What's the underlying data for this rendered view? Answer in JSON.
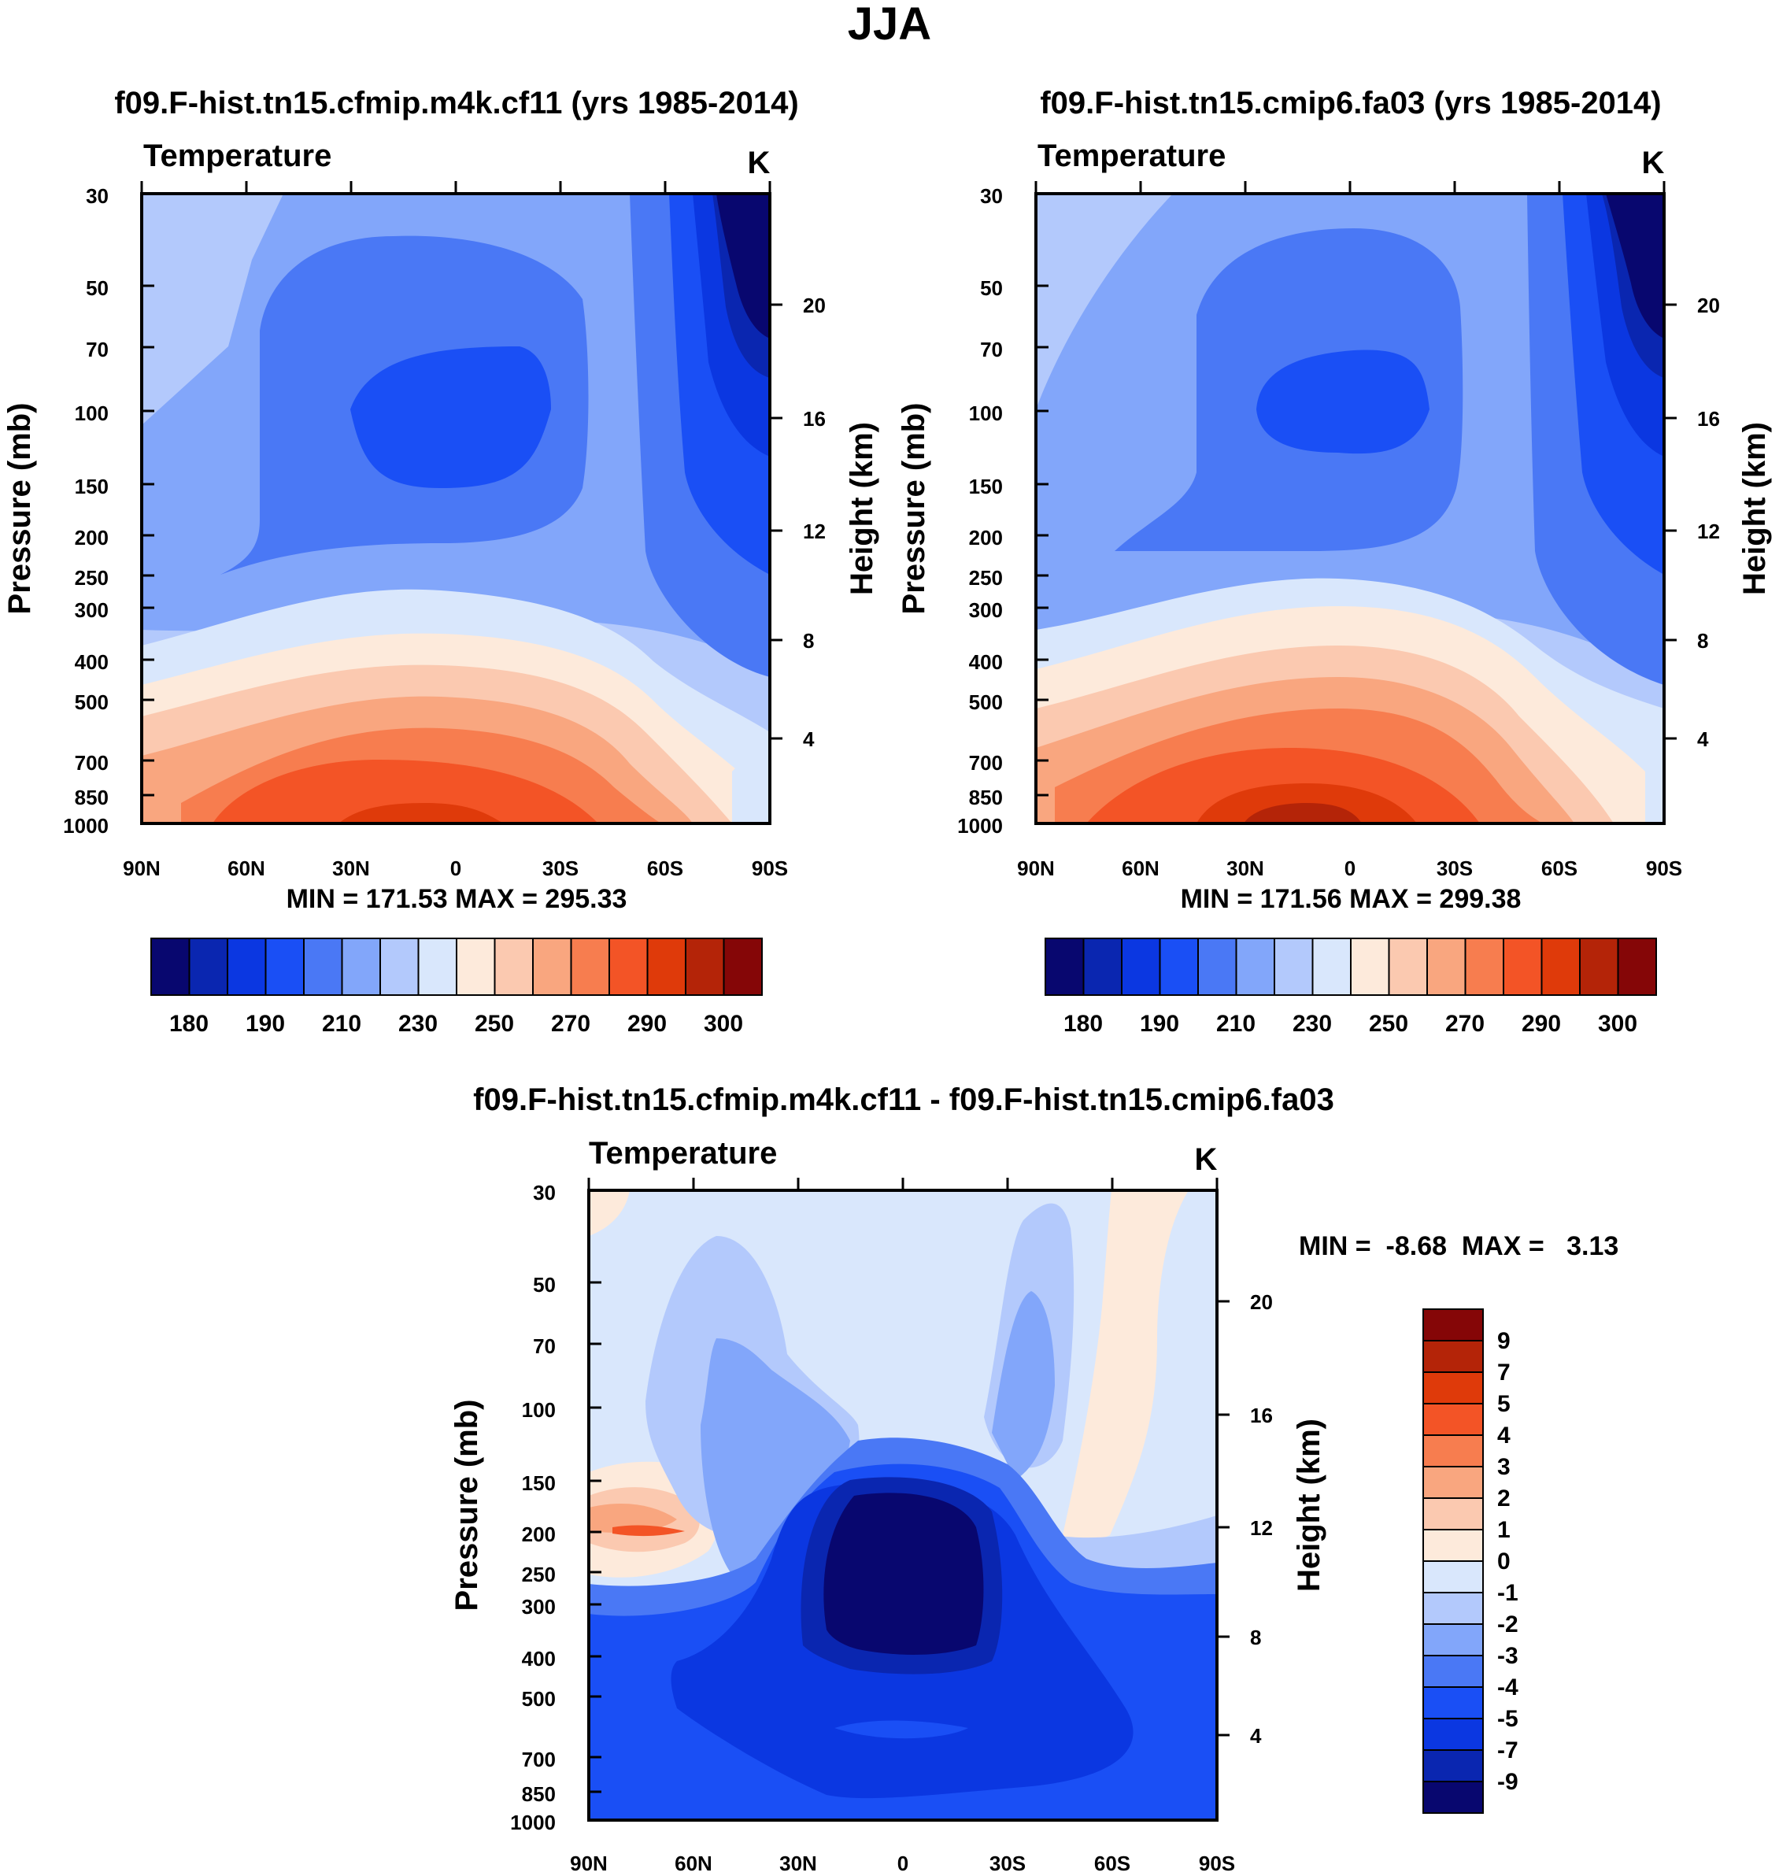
{
  "figure_title": "JJA",
  "colors": {
    "temp_palette": [
      "#08076f",
      "#0a26b0",
      "#0b37e1",
      "#1a4ff5",
      "#4a78f5",
      "#82a6fa",
      "#b3c9fc",
      "#d9e7fc",
      "#fdeadb",
      "#fbc9b0",
      "#f9a67f",
      "#f77d4f",
      "#f35426",
      "#df3a0a",
      "#b42408",
      "#850607"
    ],
    "diff_palette": [
      "#08076f",
      "#0a26b0",
      "#0b37e1",
      "#1a4ff5",
      "#4a78f5",
      "#82a6fa",
      "#b3c9fc",
      "#d9e7fc",
      "#fdeadb",
      "#fbc9b0",
      "#f9a67f",
      "#f77d4f",
      "#f35426",
      "#df3a0a",
      "#b42408",
      "#850607"
    ]
  },
  "chart_data": [
    {
      "type": "contour",
      "panel": "top-left",
      "title": "f09.F-hist.tn15.cfmip.m4k.cf11 (yrs 1985-2014)",
      "variable_label": "Temperature",
      "units": "K",
      "ylabel": "Pressure (mb)",
      "ylabel_right": "Height (km)",
      "x_ticks": [
        "90N",
        "60N",
        "30N",
        "0",
        "30S",
        "60S",
        "90S"
      ],
      "y_ticks": [
        "30",
        "50",
        "70",
        "100",
        "150",
        "200",
        "250",
        "300",
        "400",
        "500",
        "700",
        "850",
        "1000"
      ],
      "y_right_ticks": [
        "20",
        "16",
        "12",
        "8",
        "4"
      ],
      "ylim": [
        1000,
        30
      ],
      "stats_text": "MIN = 171.53  MAX = 295.33",
      "min": 171.53,
      "max": 295.33,
      "colorbar_labels": [
        "180",
        "190",
        "210",
        "230",
        "250",
        "270",
        "290",
        "300"
      ]
    },
    {
      "type": "contour",
      "panel": "top-right",
      "title": "f09.F-hist.tn15.cmip6.fa03 (yrs 1985-2014)",
      "variable_label": "Temperature",
      "units": "K",
      "ylabel": "Pressure (mb)",
      "ylabel_right": "Height (km)",
      "x_ticks": [
        "90N",
        "60N",
        "30N",
        "0",
        "30S",
        "60S",
        "90S"
      ],
      "y_ticks": [
        "30",
        "50",
        "70",
        "100",
        "150",
        "200",
        "250",
        "300",
        "400",
        "500",
        "700",
        "850",
        "1000"
      ],
      "y_right_ticks": [
        "20",
        "16",
        "12",
        "8",
        "4"
      ],
      "ylim": [
        1000,
        30
      ],
      "stats_text": "MIN = 171.56  MAX = 299.38",
      "min": 171.56,
      "max": 299.38,
      "colorbar_labels": [
        "180",
        "190",
        "210",
        "230",
        "250",
        "270",
        "290",
        "300"
      ]
    },
    {
      "type": "contour",
      "panel": "bottom",
      "title": "f09.F-hist.tn15.cfmip.m4k.cf11 - f09.F-hist.tn15.cmip6.fa03",
      "variable_label": "Temperature",
      "units": "K",
      "ylabel": "Pressure (mb)",
      "ylabel_right": "Height (km)",
      "x_ticks": [
        "90N",
        "60N",
        "30N",
        "0",
        "30S",
        "60S",
        "90S"
      ],
      "y_ticks": [
        "30",
        "50",
        "70",
        "100",
        "150",
        "200",
        "250",
        "300",
        "400",
        "500",
        "700",
        "850",
        "1000"
      ],
      "y_right_ticks": [
        "20",
        "16",
        "12",
        "8",
        "4"
      ],
      "ylim": [
        1000,
        30
      ],
      "stats_text": "MIN =  -8.68  MAX =   3.13",
      "min": -8.68,
      "max": 3.13,
      "colorbar_labels": [
        "9",
        "7",
        "5",
        "4",
        "3",
        "2",
        "1",
        "0",
        "-1",
        "-2",
        "-3",
        "-4",
        "-5",
        "-7",
        "-9"
      ]
    }
  ]
}
